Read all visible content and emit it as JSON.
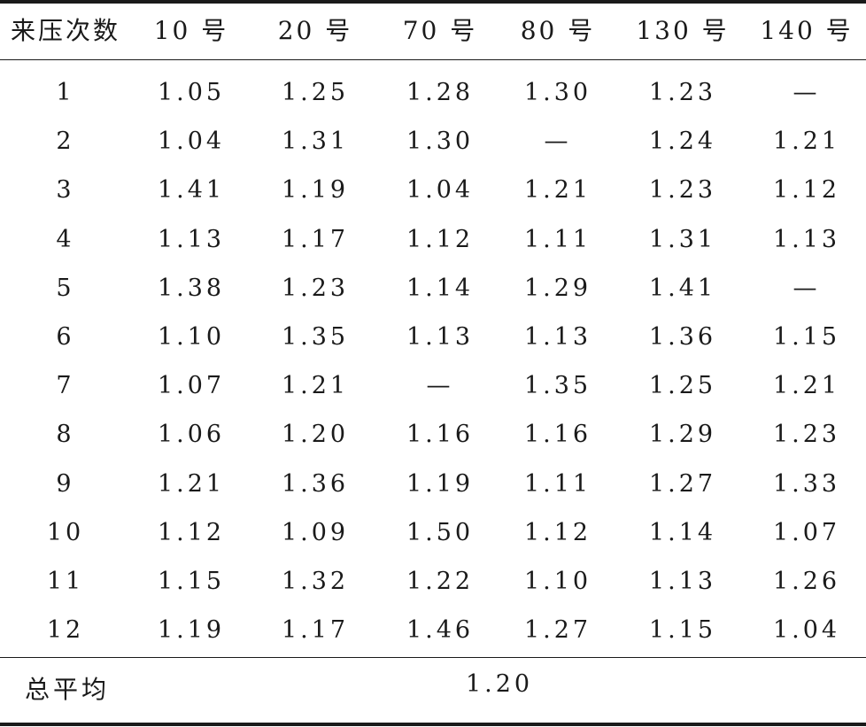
{
  "table": {
    "headers": [
      "来压次数",
      "10 号",
      "20 号",
      "70 号",
      "80 号",
      "130 号",
      "140 号"
    ],
    "rows": [
      [
        "1",
        "1.05",
        "1.25",
        "1.28",
        "1.30",
        "1.23",
        "—"
      ],
      [
        "2",
        "1.04",
        "1.31",
        "1.30",
        "—",
        "1.24",
        "1.21"
      ],
      [
        "3",
        "1.41",
        "1.19",
        "1.04",
        "1.21",
        "1.23",
        "1.12"
      ],
      [
        "4",
        "1.13",
        "1.17",
        "1.12",
        "1.11",
        "1.31",
        "1.13"
      ],
      [
        "5",
        "1.38",
        "1.23",
        "1.14",
        "1.29",
        "1.41",
        "—"
      ],
      [
        "6",
        "1.10",
        "1.35",
        "1.13",
        "1.13",
        "1.36",
        "1.15"
      ],
      [
        "7",
        "1.07",
        "1.21",
        "—",
        "1.35",
        "1.25",
        "1.21"
      ],
      [
        "8",
        "1.06",
        "1.20",
        "1.16",
        "1.16",
        "1.29",
        "1.23"
      ],
      [
        "9",
        "1.21",
        "1.36",
        "1.19",
        "1.11",
        "1.27",
        "1.33"
      ],
      [
        "10",
        "1.12",
        "1.09",
        "1.50",
        "1.12",
        "1.14",
        "1.07"
      ],
      [
        "11",
        "1.15",
        "1.32",
        "1.22",
        "1.10",
        "1.13",
        "1.26"
      ],
      [
        "12",
        "1.19",
        "1.17",
        "1.46",
        "1.27",
        "1.15",
        "1.04"
      ]
    ],
    "summary": {
      "label": "总平均",
      "value": "1.20"
    }
  }
}
